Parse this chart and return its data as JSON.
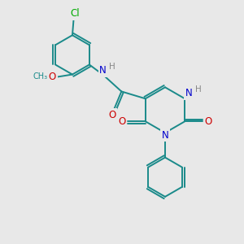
{
  "bg_color": "#e8e8e8",
  "atom_colors": {
    "C": "#1a8a8a",
    "N": "#0000cc",
    "O": "#cc0000",
    "Cl": "#00aa00",
    "H": "#888888"
  },
  "bond_color": "#1a1a1a",
  "bond_color_teal": "#1a8a8a",
  "font_size_atom": 8.5
}
